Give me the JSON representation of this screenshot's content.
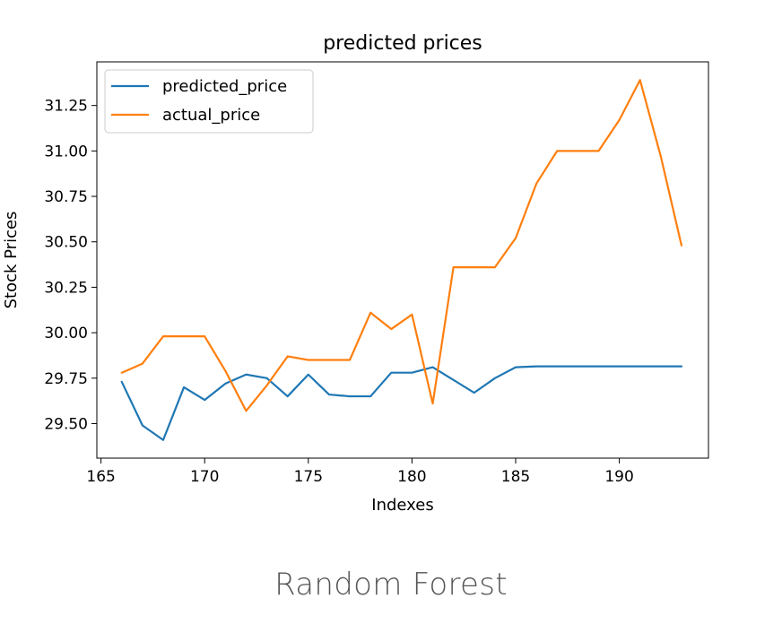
{
  "caption": "Random Forest",
  "chart_data": {
    "type": "line",
    "title": "predicted prices",
    "xlabel": "Indexes",
    "ylabel": "Stock Prices",
    "xlim": [
      164.8,
      194.3
    ],
    "ylim": [
      29.31,
      31.49
    ],
    "xticks": [
      165,
      170,
      175,
      180,
      185,
      190
    ],
    "yticks": [
      29.5,
      29.75,
      30.0,
      30.25,
      30.5,
      30.75,
      31.0,
      31.25
    ],
    "ytick_labels": [
      "29.50",
      "29.75",
      "30.00",
      "30.25",
      "30.50",
      "30.75",
      "31.00",
      "31.25"
    ],
    "legend_position": "upper-left",
    "x": [
      166,
      167,
      168,
      169,
      170,
      171,
      172,
      173,
      174,
      175,
      176,
      177,
      178,
      179,
      180,
      181,
      182,
      183,
      184,
      185,
      186,
      187,
      188,
      189,
      190,
      191,
      192,
      193
    ],
    "series": [
      {
        "name": "predicted_price",
        "color": "#1f77b4",
        "values": [
          29.73,
          29.49,
          29.41,
          29.7,
          29.63,
          29.72,
          29.77,
          29.75,
          29.65,
          29.77,
          29.66,
          29.65,
          29.65,
          29.78,
          29.78,
          29.81,
          29.74,
          29.67,
          29.75,
          29.81,
          29.815,
          29.815,
          29.815,
          29.815,
          29.815,
          29.815,
          29.815,
          29.815
        ]
      },
      {
        "name": "actual_price",
        "color": "#ff7f0e",
        "values": [
          29.78,
          29.83,
          29.98,
          29.98,
          29.98,
          29.79,
          29.57,
          29.71,
          29.87,
          29.85,
          29.85,
          29.85,
          30.11,
          30.02,
          30.1,
          29.61,
          30.36,
          30.36,
          30.36,
          30.52,
          30.82,
          31.0,
          31.0,
          31.0,
          31.17,
          31.39,
          30.97,
          30.48
        ]
      }
    ]
  }
}
